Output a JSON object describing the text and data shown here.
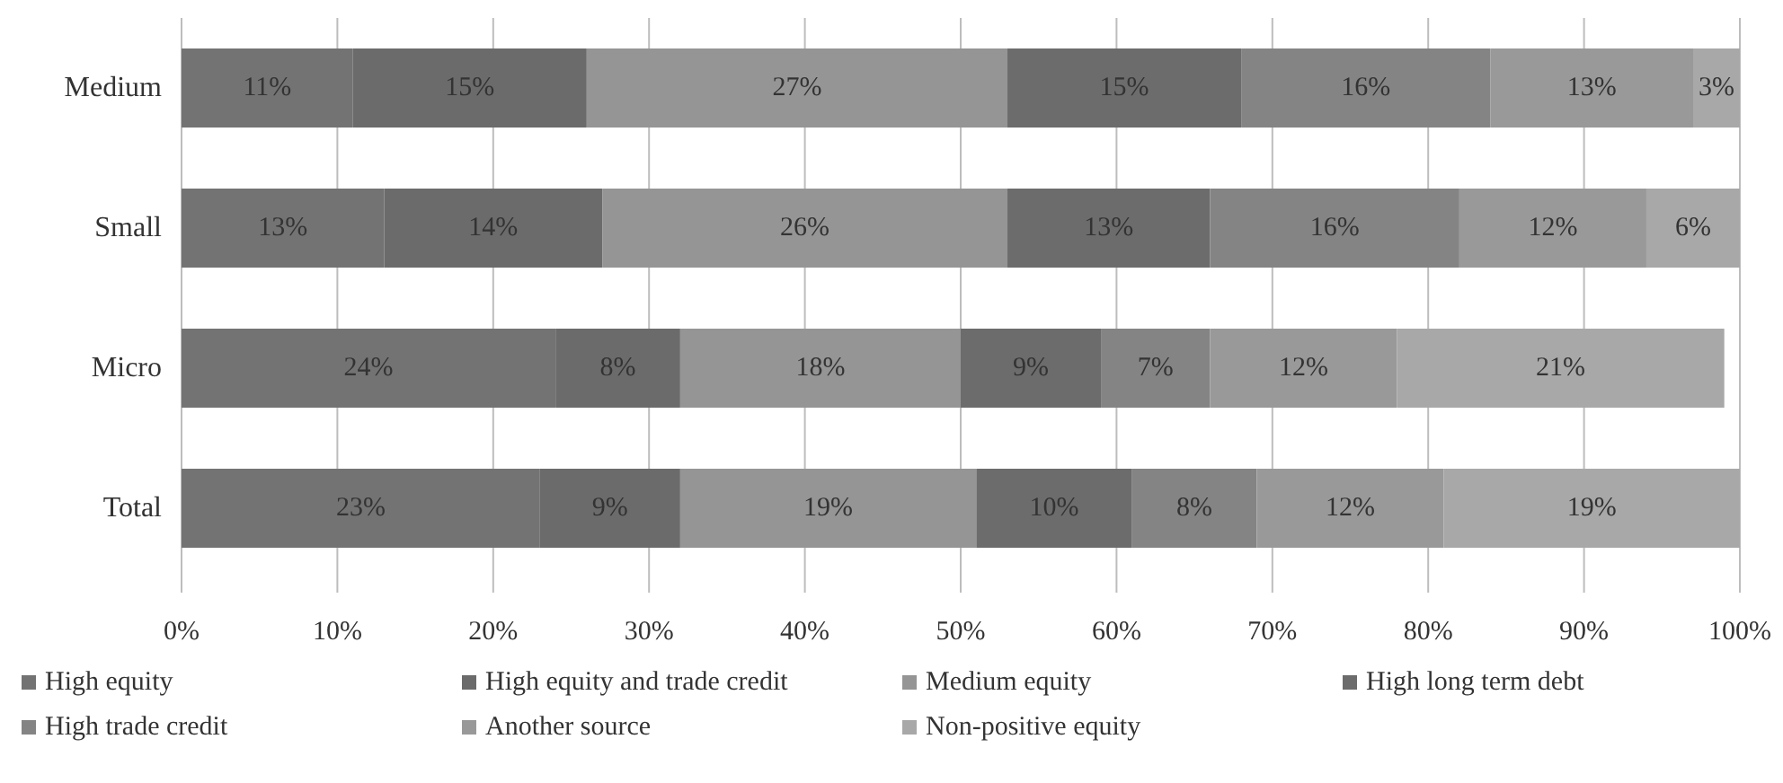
{
  "chart_data": {
    "type": "bar",
    "orientation": "horizontal",
    "stacked": true,
    "categories": [
      "Medium",
      "Small",
      "Micro",
      "Total"
    ],
    "series": [
      {
        "name": "High equity",
        "color": "#737373",
        "values": [
          11,
          13,
          24,
          23
        ],
        "value_labels": [
          "11%",
          "13%",
          "24%",
          "23%"
        ]
      },
      {
        "name": "High equity and trade credit",
        "color": "#6b6b6b",
        "values": [
          15,
          14,
          8,
          9
        ],
        "value_labels": [
          "15%",
          "14%",
          "8%",
          "9%"
        ]
      },
      {
        "name": "Medium equity",
        "color": "#959595",
        "values": [
          27,
          26,
          18,
          19
        ],
        "value_labels": [
          "27%",
          "26%",
          "18%",
          "19%"
        ]
      },
      {
        "name": "High long term debt",
        "color": "#6c6c6c",
        "values": [
          15,
          13,
          9,
          10
        ],
        "value_labels": [
          "15%",
          "13%",
          "9%",
          "10%"
        ]
      },
      {
        "name": "High trade credit",
        "color": "#848484",
        "values": [
          16,
          16,
          7,
          8
        ],
        "value_labels": [
          "16%",
          "16%",
          "7%",
          "8%"
        ]
      },
      {
        "name": "Another source",
        "color": "#999999",
        "values": [
          13,
          12,
          12,
          12
        ],
        "value_labels": [
          "13%",
          "12%",
          "12%",
          "12%"
        ]
      },
      {
        "name": "Non-positive equity",
        "color": "#a8a8a8",
        "values": [
          3,
          6,
          21,
          19
        ],
        "value_labels": [
          "3%",
          "6%",
          "21%",
          "19%"
        ]
      }
    ],
    "xlim": [
      0,
      100
    ],
    "xticks": [
      {
        "value": 0,
        "label": "0%"
      },
      {
        "value": 10,
        "label": "10%"
      },
      {
        "value": 20,
        "label": "20%"
      },
      {
        "value": 30,
        "label": "30%"
      },
      {
        "value": 40,
        "label": "40%"
      },
      {
        "value": 50,
        "label": "50%"
      },
      {
        "value": 60,
        "label": "60%"
      },
      {
        "value": 70,
        "label": "70%"
      },
      {
        "value": 80,
        "label": "80%"
      },
      {
        "value": 90,
        "label": "90%"
      },
      {
        "value": 100,
        "label": "100%"
      }
    ],
    "grid": "x",
    "legend": "bottom"
  }
}
